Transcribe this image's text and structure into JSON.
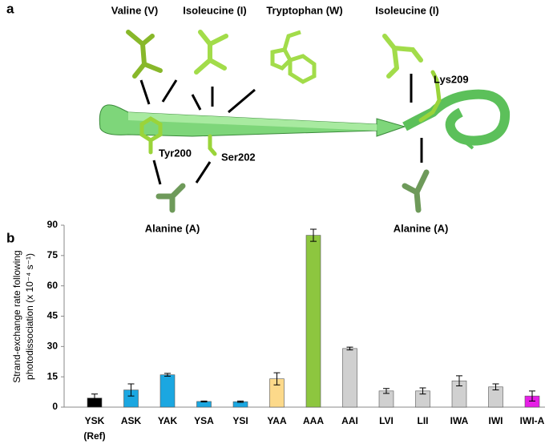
{
  "panel_a": {
    "panel_label": "a",
    "residues": [
      "Tyr200",
      "Ser202",
      "Lys209"
    ],
    "top_labels": [
      "Valine (V)",
      "Isoleucine (I)",
      "Tryptophan (W)",
      "Isoleucine (I)"
    ],
    "bottom_labels": [
      "Alanine (A)",
      "Alanine (A)"
    ]
  },
  "chart_data": {
    "type": "bar",
    "panel_label": "b",
    "ylabel": [
      "Strand-exchange rate following",
      "photodissociation (x 10⁻⁴ s⁻¹)"
    ],
    "categories": [
      "YSK",
      "ASK",
      "YAK",
      "YSA",
      "YSI",
      "YAA",
      "AAA",
      "AAI",
      "LVI",
      "LII",
      "IWA",
      "IWI",
      "IWI-A"
    ],
    "category_note": "(Ref)",
    "values": [
      4.5,
      8.5,
      16,
      2.8,
      2.7,
      14,
      85,
      29,
      8,
      8,
      13,
      10,
      5.5
    ],
    "errors": [
      2,
      3,
      0.7,
      0.2,
      0.3,
      3,
      3,
      0.7,
      1.2,
      1.5,
      2.5,
      1.5,
      2.5
    ],
    "colors": [
      "#000000",
      "#1ba7e1",
      "#1ba7e1",
      "#1ba7e1",
      "#1ba7e1",
      "#fcd98a",
      "#8dc63f",
      "#d0d0d0",
      "#d0d0d0",
      "#d0d0d0",
      "#d0d0d0",
      "#d0d0d0",
      "#e61ee6"
    ],
    "ylim": [
      0,
      90
    ],
    "yticks": [
      0,
      15,
      30,
      45,
      60,
      75,
      90
    ]
  }
}
